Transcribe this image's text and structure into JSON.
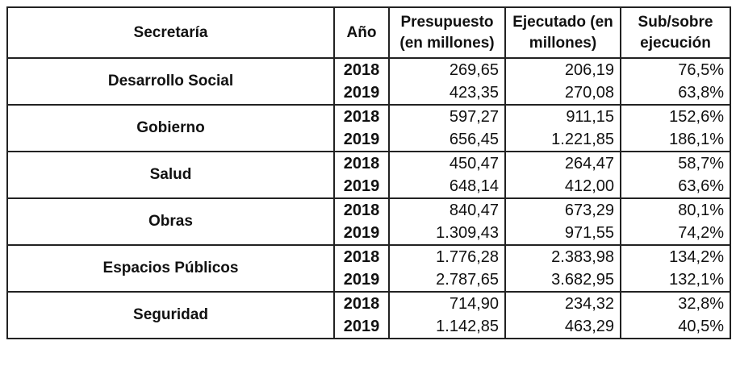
{
  "headers": {
    "secretaria": "Secretaría",
    "ano": "Año",
    "presupuesto": "Presupuesto (en millones)",
    "ejecutado": "Ejecutado (en millones)",
    "sub_sobre": "Sub/sobre ejecución"
  },
  "rows": [
    {
      "secretaria": "Desarrollo Social",
      "years": [
        {
          "ano": "2018",
          "presupuesto": "269,65",
          "ejecutado": "206,19",
          "sub_sobre": "76,5%"
        },
        {
          "ano": "2019",
          "presupuesto": "423,35",
          "ejecutado": "270,08",
          "sub_sobre": "63,8%"
        }
      ]
    },
    {
      "secretaria": "Gobierno",
      "years": [
        {
          "ano": "2018",
          "presupuesto": "597,27",
          "ejecutado": "911,15",
          "sub_sobre": "152,6%"
        },
        {
          "ano": "2019",
          "presupuesto": "656,45",
          "ejecutado": "1.221,85",
          "sub_sobre": "186,1%"
        }
      ]
    },
    {
      "secretaria": "Salud",
      "years": [
        {
          "ano": "2018",
          "presupuesto": "450,47",
          "ejecutado": "264,47",
          "sub_sobre": "58,7%"
        },
        {
          "ano": "2019",
          "presupuesto": "648,14",
          "ejecutado": "412,00",
          "sub_sobre": "63,6%"
        }
      ]
    },
    {
      "secretaria": "Obras",
      "years": [
        {
          "ano": "2018",
          "presupuesto": "840,47",
          "ejecutado": "673,29",
          "sub_sobre": "80,1%"
        },
        {
          "ano": "2019",
          "presupuesto": "1.309,43",
          "ejecutado": "971,55",
          "sub_sobre": "74,2%"
        }
      ]
    },
    {
      "secretaria": "Espacios Públicos",
      "years": [
        {
          "ano": "2018",
          "presupuesto": "1.776,28",
          "ejecutado": "2.383,98",
          "sub_sobre": "134,2%"
        },
        {
          "ano": "2019",
          "presupuesto": "2.787,65",
          "ejecutado": "3.682,95",
          "sub_sobre": "132,1%"
        }
      ]
    },
    {
      "secretaria": "Seguridad",
      "years": [
        {
          "ano": "2018",
          "presupuesto": "714,90",
          "ejecutado": "234,32",
          "sub_sobre": "32,8%"
        },
        {
          "ano": "2019",
          "presupuesto": "1.142,85",
          "ejecutado": "463,29",
          "sub_sobre": "40,5%"
        }
      ]
    }
  ]
}
